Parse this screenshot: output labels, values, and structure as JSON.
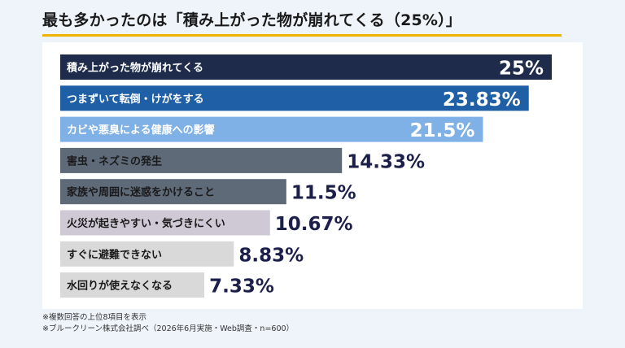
{
  "title": "最も多かったのは「積み上がった物が崩れてくる（25%）」",
  "accent_color": "#f0b400",
  "notes": [
    "※複数回答の上位8項目を表示",
    "※ブルークリーン株式会社調べ（2026年6月実施・Web調査・n=600）"
  ],
  "chart_data": {
    "type": "bar",
    "orientation": "horizontal",
    "title": "最も多かったのは「積み上がった物が崩れてくる（25%）」",
    "categories": [
      "積み上がった物が崩れてくる",
      "つまずいて転倒・けがをする",
      "カビや悪臭による健康への影響",
      "害虫・ネズミの発生",
      "家族や周囲に迷惑をかけること",
      "火災が起きやすい・気づきにくい",
      "すぐに避難できない",
      "水回りが使えなくなる"
    ],
    "values": [
      25,
      23.83,
      21.5,
      14.33,
      11.5,
      10.67,
      8.83,
      7.33
    ],
    "value_labels": [
      "25%",
      "23.83%",
      "21.5%",
      "14.33%",
      "11.5%",
      "10.67%",
      "8.83%",
      "7.33%"
    ],
    "colors": [
      "#1e2b4a",
      "#1f5fa6",
      "#7fb0e6",
      "#5f6a78",
      "#5f6a78",
      "#cfc9d6",
      "#d9d9d9",
      "#d9d9d9"
    ],
    "label_colors": [
      "#ffffff",
      "#ffffff",
      "#ffffff",
      "#1a1a1a",
      "#1a1a1a",
      "#1a1a1a",
      "#1a1a1a",
      "#1a1a1a"
    ],
    "value_colors": [
      "#ffffff",
      "#ffffff",
      "#ffffff",
      "#1b1f4a",
      "#1b1f4a",
      "#1b1f4a",
      "#1b1f4a",
      "#1b1f4a"
    ],
    "grid": false,
    "legend": "none"
  }
}
